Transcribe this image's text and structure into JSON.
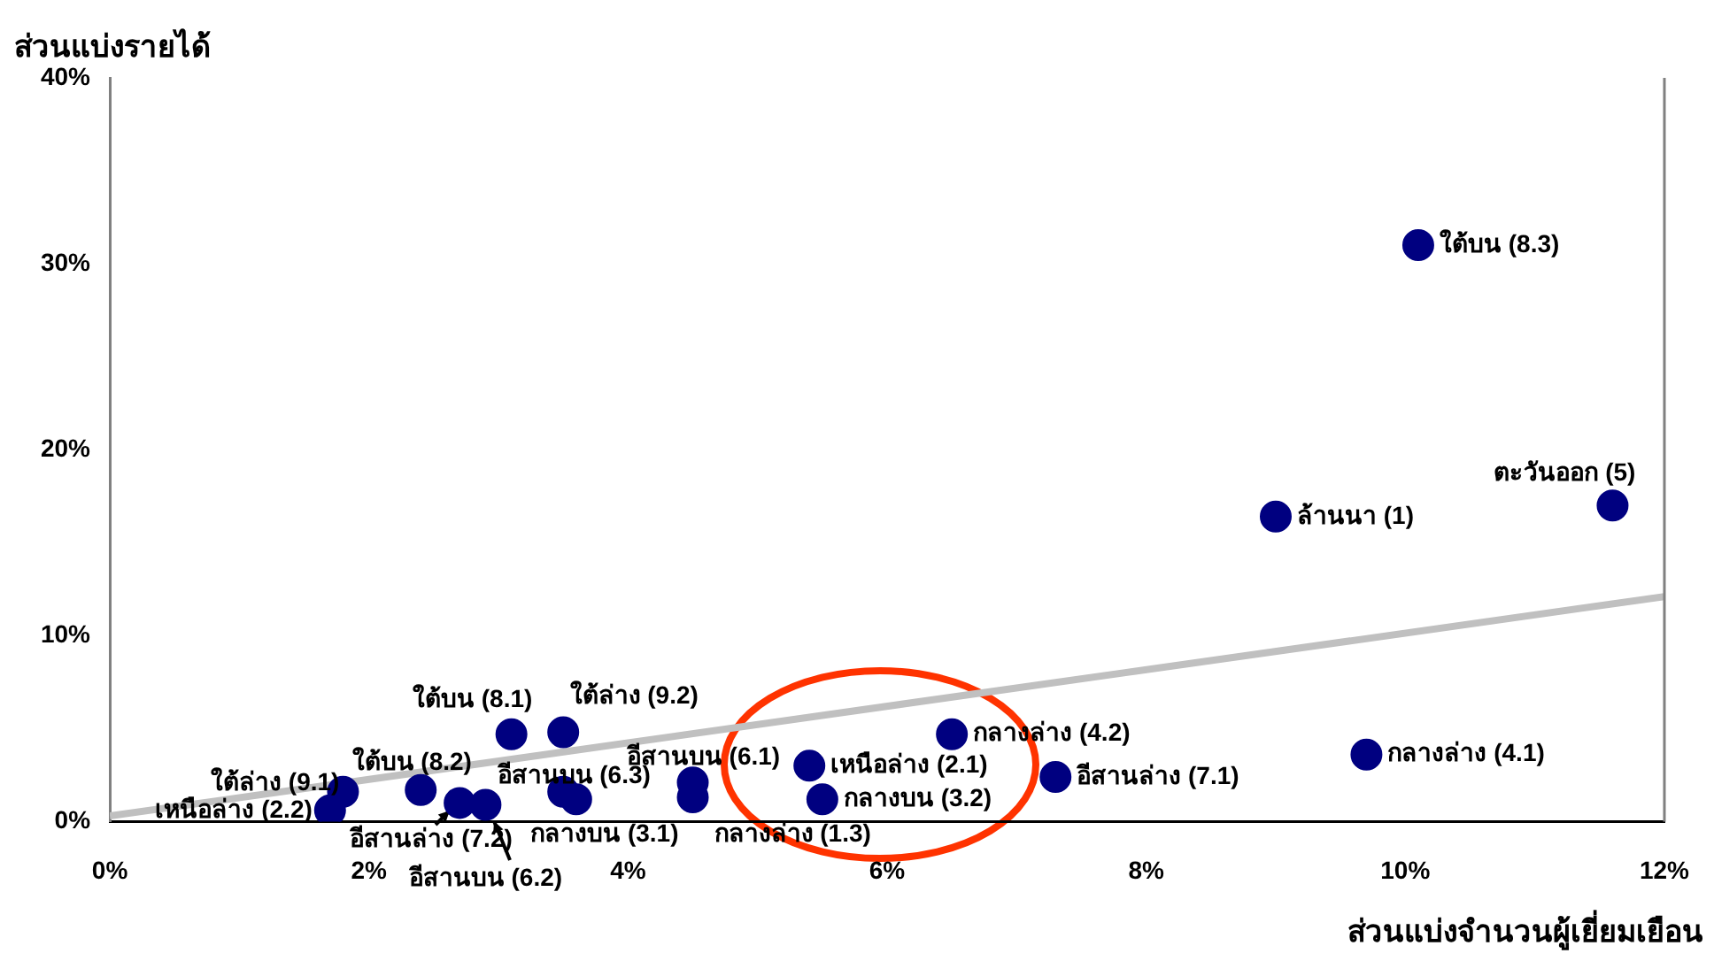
{
  "chart_data": {
    "type": "scatter",
    "xlabel": "ส่วนแบ่งจำนวนผู้เยี่ยมเยือน",
    "ylabel": "ส่วนแบ่งรายได้",
    "xlim": [
      0,
      12
    ],
    "xticks": [
      {
        "value": 0,
        "label": "0%"
      },
      {
        "value": 2,
        "label": "2%"
      },
      {
        "value": 4,
        "label": "4%"
      },
      {
        "value": 6,
        "label": "6%"
      },
      {
        "value": 8,
        "label": "8%"
      },
      {
        "value": 10,
        "label": "10%"
      },
      {
        "value": 12,
        "label": "12%"
      }
    ],
    "ylim": [
      0,
      40
    ],
    "yticks": [
      {
        "value": 0,
        "label": "0%"
      },
      {
        "value": 10,
        "label": "10%"
      },
      {
        "value": 20,
        "label": "20%"
      },
      {
        "value": 30,
        "label": "30%"
      },
      {
        "value": 40,
        "label": "40%"
      }
    ],
    "grid": false,
    "legend": false,
    "marker": "circle",
    "series": [
      {
        "name": "ใต้บน (8.3)",
        "color": "#000080",
        "x": [
          10.1
        ],
        "values": [
          31.0
        ]
      },
      {
        "name": "ล้านนา (1)",
        "color": "#000080",
        "x": [
          9.0
        ],
        "values": [
          16.4
        ]
      },
      {
        "name": "ตะวันออก (5)",
        "color": "#000080",
        "x": [
          11.6
        ],
        "values": [
          17.0
        ]
      },
      {
        "name": "กลางล่าง (4.1)",
        "color": "#000080",
        "x": [
          9.7
        ],
        "values": [
          3.6
        ]
      },
      {
        "name": "อีสานล่าง (7.1)",
        "color": "#000080",
        "x": [
          7.3
        ],
        "values": [
          2.4
        ]
      },
      {
        "name": "กลางล่าง (4.2)",
        "color": "#000080",
        "x": [
          6.5
        ],
        "values": [
          4.7
        ]
      },
      {
        "name": "เหนือล่าง (2.1)",
        "color": "#000080",
        "x": [
          5.4
        ],
        "values": [
          3.0
        ]
      },
      {
        "name": "กลางบน (3.2)",
        "color": "#000080",
        "x": [
          5.5
        ],
        "values": [
          1.2
        ]
      },
      {
        "name": "อีสานบน (6.1)",
        "color": "#000080",
        "x": [
          4.5
        ],
        "values": [
          2.1
        ]
      },
      {
        "name": "กลางล่าง (1.3)",
        "color": "#000080",
        "x": [
          4.5
        ],
        "values": [
          1.3
        ]
      },
      {
        "name": "ใต้บน (8.1)",
        "color": "#000080",
        "x": [
          3.1
        ],
        "values": [
          4.7
        ]
      },
      {
        "name": "ใต้ล่าง (9.2)",
        "color": "#000080",
        "x": [
          3.5
        ],
        "values": [
          4.8
        ]
      },
      {
        "name": "อีสานบน (6.3)",
        "color": "#000080",
        "x": [
          3.5
        ],
        "values": [
          1.6
        ]
      },
      {
        "name": "กลางบน (3.1)",
        "color": "#000080",
        "x": [
          3.6
        ],
        "values": [
          1.2
        ]
      },
      {
        "name": "ใต้บน (8.2)",
        "color": "#000080",
        "x": [
          2.4
        ],
        "values": [
          1.7
        ]
      },
      {
        "name": "อีสานล่าง (7.2)",
        "color": "#000080",
        "x": [
          2.7
        ],
        "values": [
          1.0
        ]
      },
      {
        "name": "อีสานบน (6.2)",
        "color": "#000080",
        "x": [
          2.9
        ],
        "values": [
          0.9
        ]
      },
      {
        "name": "ใต้ล่าง (9.1)",
        "color": "#000080",
        "x": [
          1.8
        ],
        "values": [
          1.6
        ]
      },
      {
        "name": "เหนือล่าง (2.2)",
        "color": "#000080",
        "x": [
          1.7
        ],
        "values": [
          0.6
        ]
      },
      {
        "type": "line",
        "color": "#c0c0c0",
        "marker": "none",
        "x": [
          0,
          12
        ],
        "values": [
          0.3,
          12.1
        ]
      }
    ]
  }
}
